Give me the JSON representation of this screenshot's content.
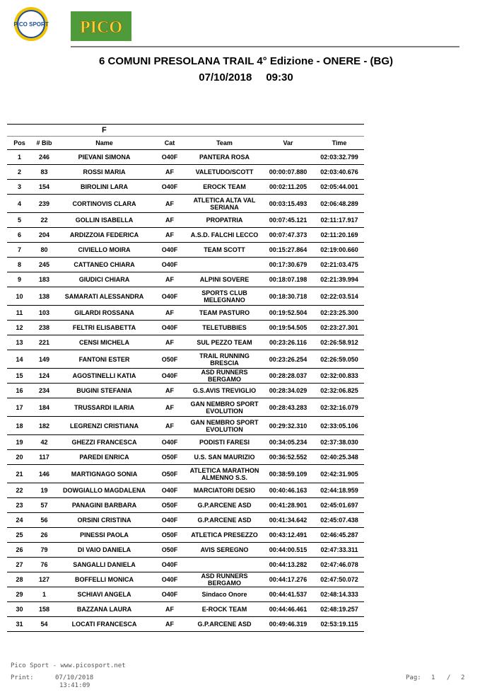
{
  "logos": {
    "left": "PICO SPORT",
    "right": "PICO"
  },
  "header": {
    "title": "6 COMUNI PRESOLANA TRAIL 4° Edizione - ONERE - (BG)",
    "date": "07/10/2018",
    "time": "09:30"
  },
  "table": {
    "group": "F",
    "columns": [
      "Pos",
      "# Bib",
      "Name",
      "Cat",
      "Team",
      "Var",
      "Time"
    ],
    "rows": [
      [
        "1",
        "246",
        "PIEVANI SIMONA",
        "O40F",
        "PANTERA ROSA",
        null,
        "02:03:32.799"
      ],
      [
        "2",
        "83",
        "ROSSI MARIA",
        "AF",
        "VALETUDO/SCOTT",
        "00:00:07.880",
        "02:03:40.676"
      ],
      [
        "3",
        "154",
        "BIROLINI LARA",
        "O40F",
        "EROCK TEAM",
        "00:02:11.205",
        "02:05:44.001"
      ],
      [
        "4",
        "239",
        "CORTINOVIS CLARA",
        "AF",
        "ATLETICA ALTA VAL SERIANA",
        "00:03:15.493",
        "02:06:48.289"
      ],
      [
        "5",
        "22",
        "GOLLIN ISABELLA",
        "AF",
        "PROPATRIA",
        "00:07:45.121",
        "02:11:17.917"
      ],
      [
        "6",
        "204",
        "ARDIZZOIA FEDERICA",
        "AF",
        "A.S.D. FALCHI LECCO",
        "00:07:47.373",
        "02:11:20.169"
      ],
      [
        "7",
        "80",
        "CIVIELLO MOIRA",
        "O40F",
        "TEAM SCOTT",
        "00:15:27.864",
        "02:19:00.660"
      ],
      [
        "8",
        "245",
        "CATTANEO CHIARA",
        "O40F",
        null,
        "00:17:30.679",
        "02:21:03.475"
      ],
      [
        "9",
        "183",
        "GIUDICI CHIARA",
        "AF",
        "ALPINI SOVERE",
        "00:18:07.198",
        "02:21:39.994"
      ],
      [
        "10",
        "138",
        "SAMARATI ALESSANDRA",
        "O40F",
        "SPORTS CLUB MELEGNANO",
        "00:18:30.718",
        "02:22:03.514"
      ],
      [
        "11",
        "103",
        "GILARDI ROSSANA",
        "AF",
        "TEAM PASTURO",
        "00:19:52.504",
        "02:23:25.300"
      ],
      [
        "12",
        "238",
        "FELTRI ELISABETTA",
        "O40F",
        "TELETUBBIES",
        "00:19:54.505",
        "02:23:27.301"
      ],
      [
        "13",
        "221",
        "CENSI MICHELA",
        "AF",
        "SUL PEZZO TEAM",
        "00:23:26.116",
        "02:26:58.912"
      ],
      [
        "14",
        "149",
        "FANTONI ESTER",
        "O50F",
        "TRAIL RUNNING BRESCIA",
        "00:23:26.254",
        "02:26:59.050"
      ],
      [
        "15",
        "124",
        "AGOSTINELLI KATIA",
        "O40F",
        "ASD RUNNERS BERGAMO",
        "00:28:28.037",
        "02:32:00.833"
      ],
      [
        "16",
        "234",
        "BUGINI STEFANIA",
        "AF",
        "G.S.AVIS TREVIGLIO",
        "00:28:34.029",
        "02:32:06.825"
      ],
      [
        "17",
        "184",
        "TRUSSARDI ILARIA",
        "AF",
        "GAN NEMBRO SPORT EVOLUTION",
        "00:28:43.283",
        "02:32:16.079"
      ],
      [
        "18",
        "182",
        "LEGRENZI CRISTIANA",
        "AF",
        "GAN NEMBRO SPORT EVOLUTION",
        "00:29:32.310",
        "02:33:05.106"
      ],
      [
        "19",
        "42",
        "GHEZZI FRANCESCA",
        "O40F",
        "PODISTI FARESI",
        "00:34:05.234",
        "02:37:38.030"
      ],
      [
        "20",
        "117",
        "PAREDI ENRICA",
        "O50F",
        "U.S. SAN MAURIZIO",
        "00:36:52.552",
        "02:40:25.348"
      ],
      [
        "21",
        "146",
        "MARTIGNAGO SONIA",
        "O50F",
        "ATLETICA MARATHON ALMENNO S.S.",
        "00:38:59.109",
        "02:42:31.905"
      ],
      [
        "22",
        "19",
        "DOWGIALLO MAGDALENA",
        "O40F",
        "MARCIATORI DESIO",
        "00:40:46.163",
        "02:44:18.959"
      ],
      [
        "23",
        "57",
        "PANAGINI BARBARA",
        "O50F",
        "G.P.ARCENE ASD",
        "00:41:28.901",
        "02:45:01.697"
      ],
      [
        "24",
        "56",
        "ORSINI CRISTINA",
        "O40F",
        "G.P.ARCENE ASD",
        "00:41:34.642",
        "02:45:07.438"
      ],
      [
        "25",
        "26",
        "PINESSI PAOLA",
        "O50F",
        "ATLETICA PRESEZZO",
        "00:43:12.491",
        "02:46:45.287"
      ],
      [
        "26",
        "79",
        "DI VAIO DANIELA",
        "O50F",
        "AVIS SEREGNO",
        "00:44:00.515",
        "02:47:33.311"
      ],
      [
        "27",
        "76",
        "SANGALLI DANIELA",
        "O40F",
        null,
        "00:44:13.282",
        "02:47:46.078"
      ],
      [
        "28",
        "127",
        "BOFFELLI MONICA",
        "O40F",
        "ASD RUNNERS BERGAMO",
        "00:44:17.276",
        "02:47:50.072"
      ],
      [
        "29",
        "1",
        "SCHIAVI ANGELA",
        "O40F",
        "Sindaco Onore",
        "00:44:41.537",
        "02:48:14.333"
      ],
      [
        "30",
        "158",
        "BAZZANA LAURA",
        "AF",
        "E-ROCK TEAM",
        "00:44:46.461",
        "02:48:19.257"
      ],
      [
        "31",
        "54",
        "LOCATI FRANCESCA",
        "AF",
        "G.P.ARCENE ASD",
        "00:49:46.319",
        "02:53:19.115"
      ]
    ]
  },
  "footer": {
    "site": "Pico Sport - www.picosport.net",
    "print_label": "Print:",
    "print_date": "07/10/2018",
    "print_time": "13:41:09",
    "page_label": "Pag:",
    "page": "1",
    "separator": "/",
    "pages": "2"
  }
}
